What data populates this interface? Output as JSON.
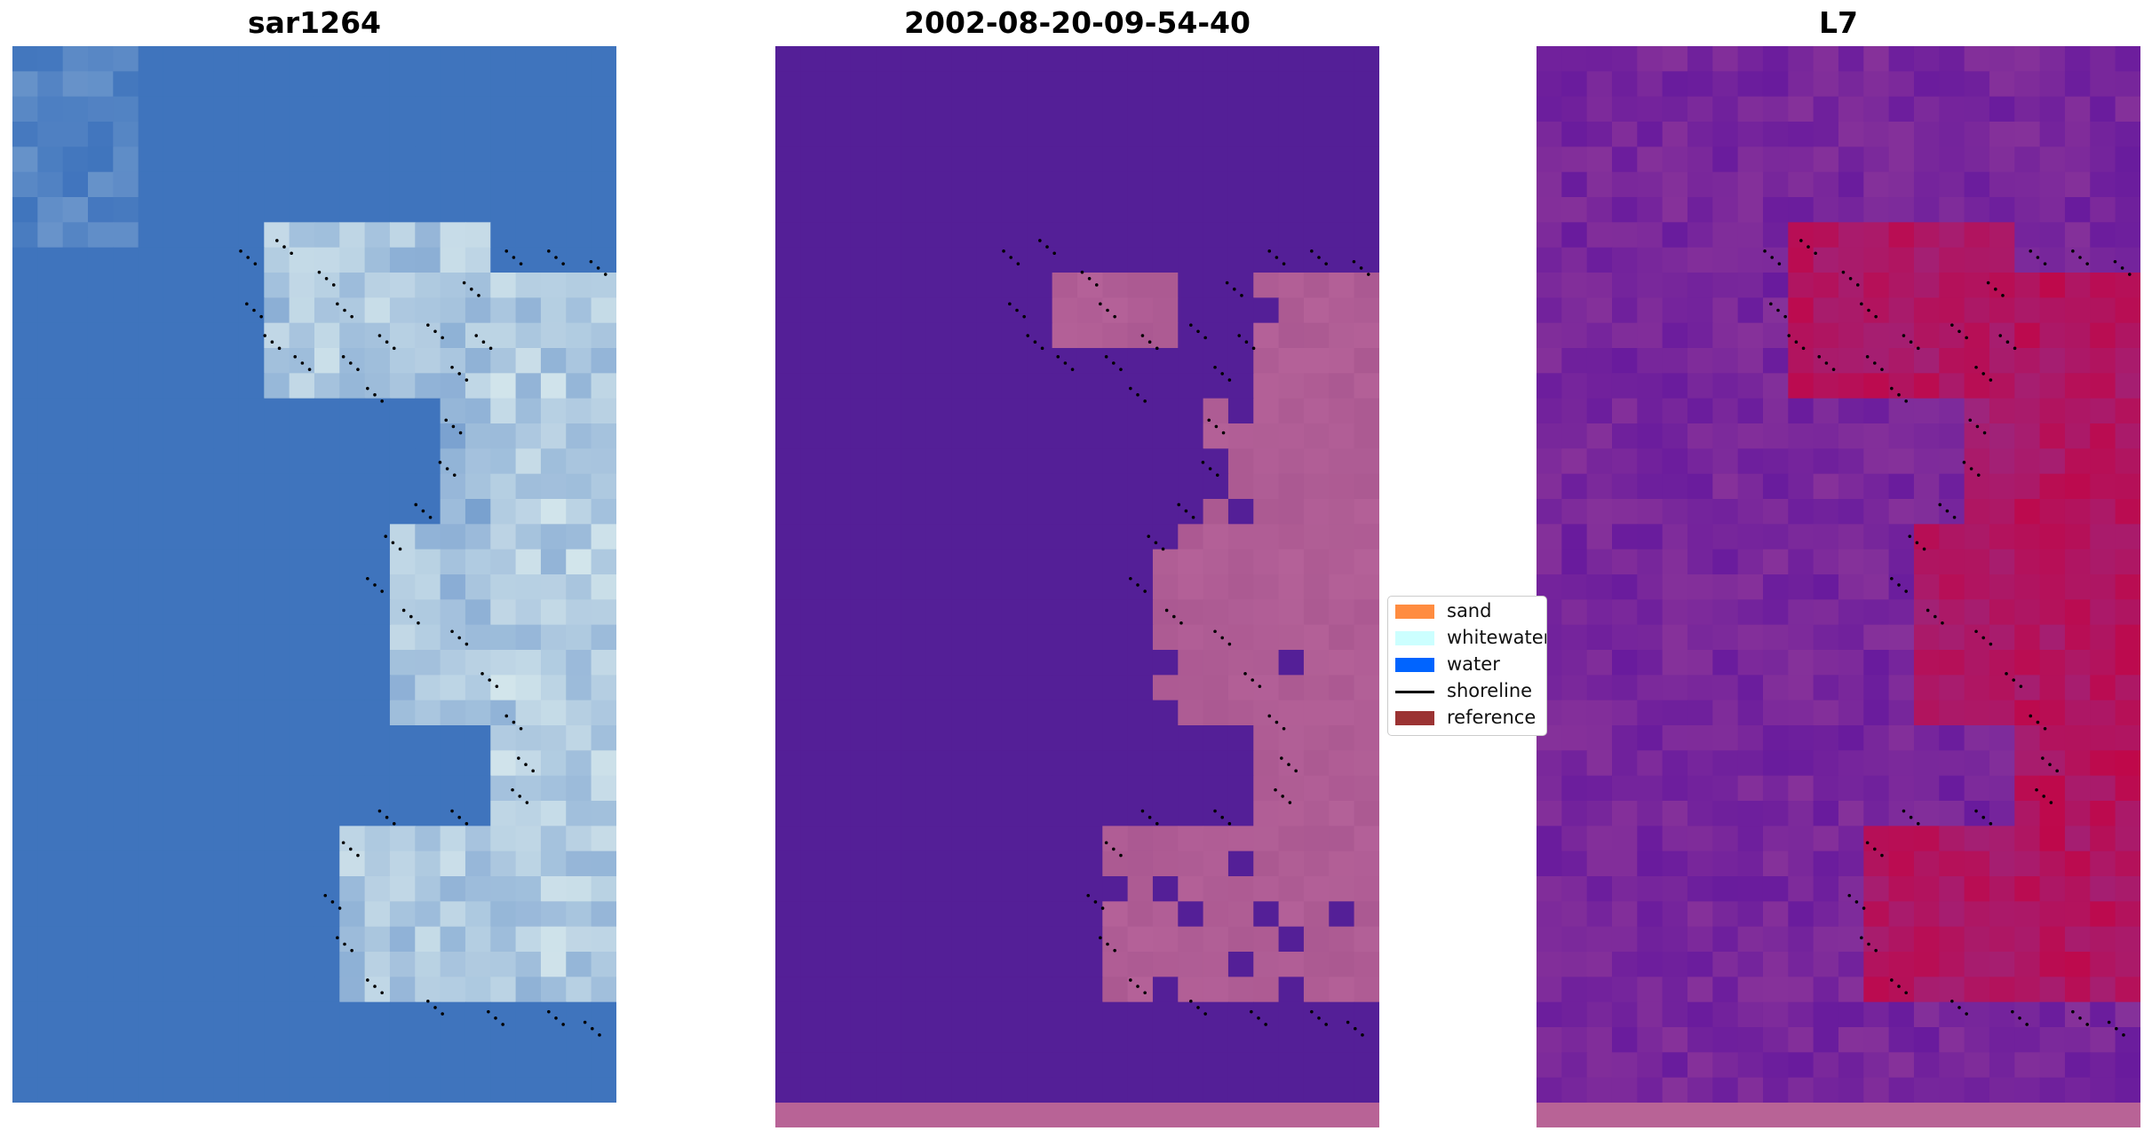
{
  "panels": [
    {
      "title": "sar1264",
      "style": "rgb"
    },
    {
      "title": "2002-08-20-09-54-40",
      "style": "classified"
    },
    {
      "title": "L7",
      "style": "index"
    }
  ],
  "legend": {
    "items": [
      {
        "label": "sand",
        "kind": "patch",
        "color": "#ff8c40"
      },
      {
        "label": "whitewater",
        "kind": "patch",
        "color": "#ccffff"
      },
      {
        "label": "water",
        "kind": "patch",
        "color": "#0064ff"
      },
      {
        "label": "shoreline",
        "kind": "line",
        "color": "#000000"
      },
      {
        "label": "reference",
        "kind": "patch",
        "color": "#9b3333"
      }
    ]
  },
  "colors": {
    "rgb_water": "#3f74bd",
    "rgb_whitewater": "#f0fbf6",
    "classified_water": "#541f97",
    "classified_other": "#b46198",
    "index_low": "#5a109f",
    "index_mid": "#8b3599",
    "index_high": "#c8003c",
    "bottom_strip": "#b86396"
  }
}
